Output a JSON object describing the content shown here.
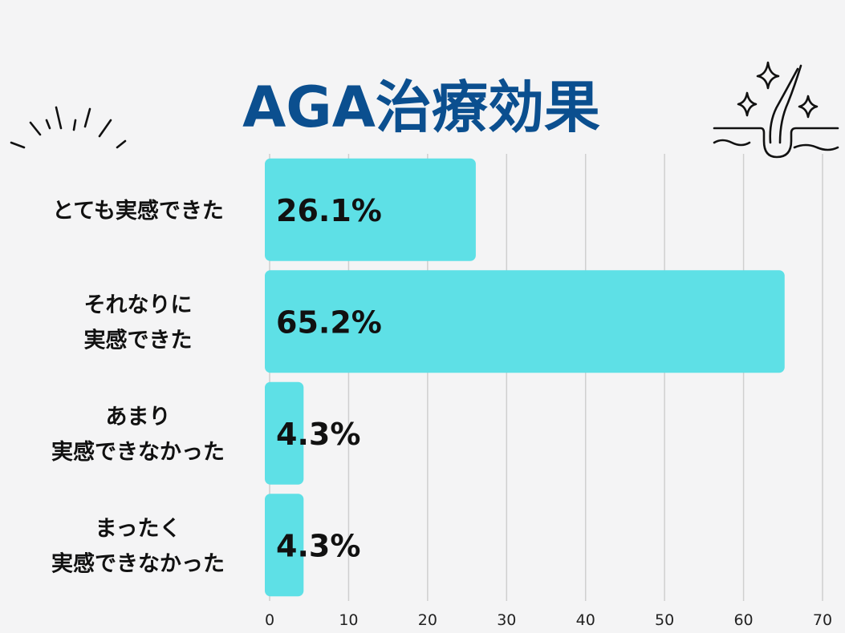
{
  "chart_data": {
    "type": "bar",
    "orientation": "horizontal",
    "title": "AGA治療効果",
    "categories": [
      [
        "とても実感できた"
      ],
      [
        "それなりに",
        "実感できた"
      ],
      [
        "あまり",
        "実感できなかった"
      ],
      [
        "まったく",
        "実感できなかった"
      ]
    ],
    "values": [
      26.1,
      65.2,
      4.3,
      4.3
    ],
    "value_labels": [
      "26.1%",
      "65.2%",
      "4.3%",
      "4.3%"
    ],
    "xlim": [
      0,
      70
    ],
    "xticks": [
      0,
      10,
      20,
      30,
      40,
      50,
      60,
      70
    ],
    "grid": true,
    "bar_color": "#5ee0e6",
    "title_color": "#0b4f8f"
  },
  "decorations": {
    "left": "burst-lines-icon",
    "right": "hair-follicle-sparkle-icon"
  }
}
